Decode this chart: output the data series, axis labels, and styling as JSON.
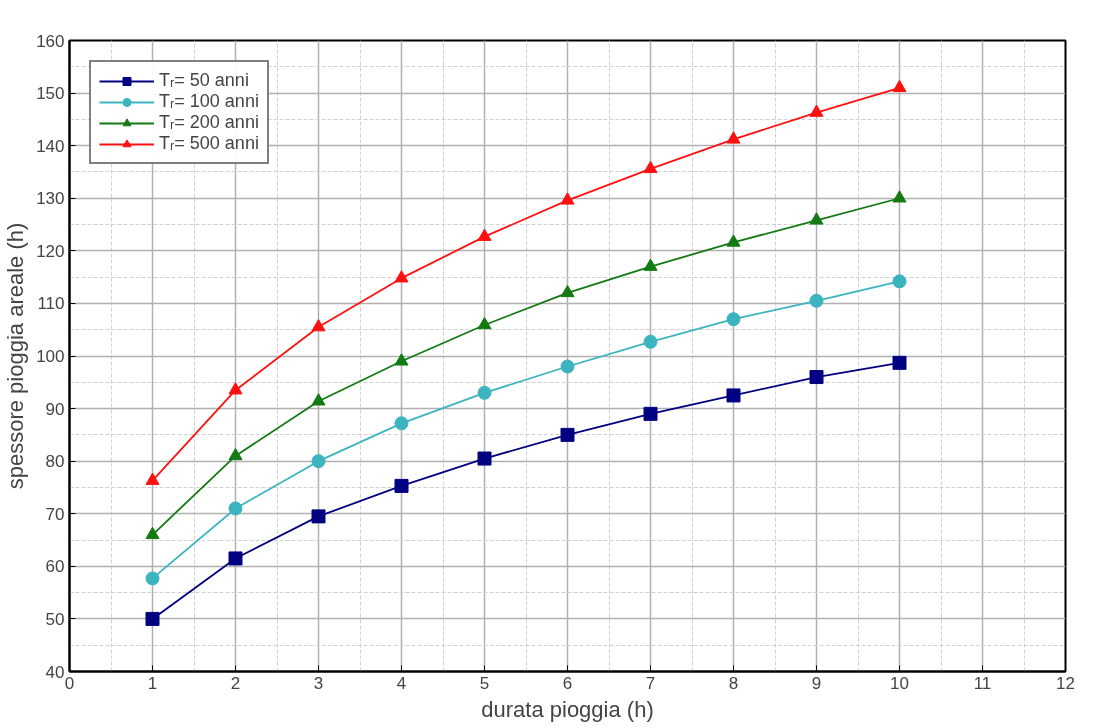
{
  "chart_data": {
    "type": "line",
    "xlabel": "durata pioggia (h)",
    "ylabel": "spessore pioggia areale (h)",
    "x": [
      1,
      2,
      3,
      4,
      5,
      6,
      7,
      8,
      9,
      10
    ],
    "series": [
      {
        "name": "Tᵣ= 50 anni",
        "color": "#000080",
        "marker": "square",
        "values": [
          50,
          61.5,
          69.5,
          75.3,
          80.5,
          85,
          89,
          92.5,
          96,
          98.7
        ]
      },
      {
        "name": "Tᵣ= 100 anni",
        "color": "#3cb4c0",
        "marker": "circle",
        "values": [
          57.7,
          71,
          80,
          87.2,
          93,
          98,
          102.7,
          107,
          110.5,
          114.2
        ]
      },
      {
        "name": "Tᵣ= 200 anni",
        "color": "#137a13",
        "marker": "triangle",
        "values": [
          66,
          81,
          91.4,
          99,
          105.9,
          112,
          117,
          121.6,
          125.8,
          130
        ]
      },
      {
        "name": "Tᵣ= 500 anni",
        "color": "#ff1010",
        "marker": "triangle",
        "values": [
          76.3,
          93.5,
          105.5,
          114.8,
          122.7,
          129.6,
          135.6,
          141.2,
          146.3,
          151
        ]
      }
    ],
    "xlim": [
      0,
      12
    ],
    "xticks": [
      0,
      1,
      2,
      3,
      4,
      5,
      6,
      7,
      8,
      9,
      10,
      11,
      12
    ],
    "ylim": [
      40,
      160
    ],
    "yticks": [
      40,
      50,
      60,
      70,
      80,
      90,
      100,
      110,
      120,
      130,
      140,
      150,
      160
    ],
    "grid": true,
    "legend": "top left",
    "line_style": "solid"
  }
}
